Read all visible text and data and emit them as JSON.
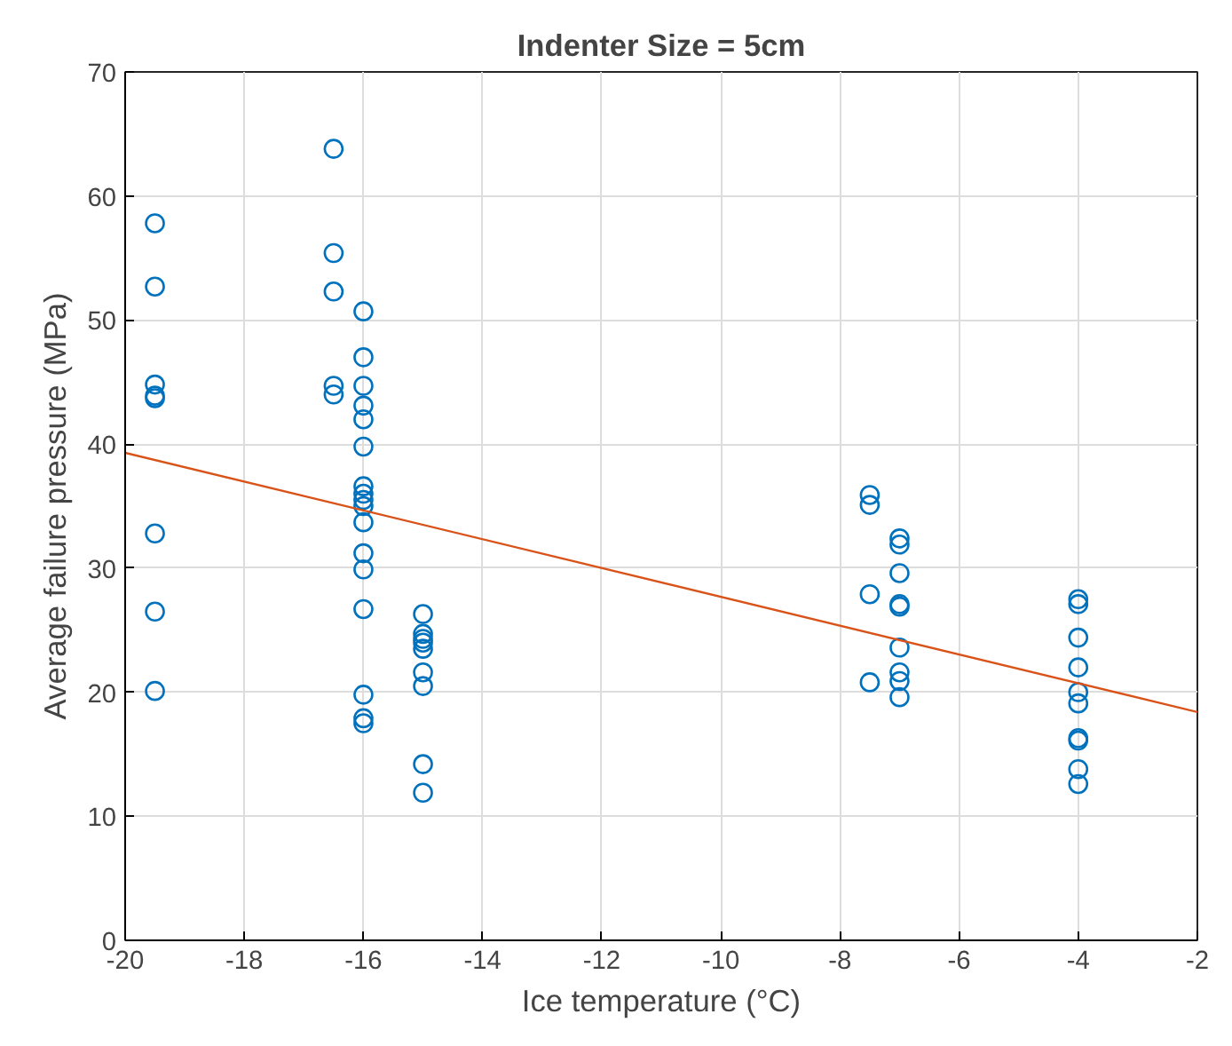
{
  "chart_data": {
    "type": "scatter",
    "title": "Indenter Size = 5cm",
    "xlabel": "Ice temperature (°C)",
    "ylabel": "Average failure pressure (MPa)",
    "xlim": [
      -20,
      -2
    ],
    "xticks": [
      -20,
      -18,
      -16,
      -14,
      -12,
      -10,
      -8,
      -6,
      -4,
      -2
    ],
    "ylim": [
      0,
      70
    ],
    "yticks": [
      0,
      10,
      20,
      30,
      40,
      50,
      60,
      70
    ],
    "grid": true,
    "series": [
      {
        "marker": "circle",
        "color": "#0072bd",
        "x": [
          -19.5,
          -19.5,
          -19.5,
          -19.5,
          -19.5,
          -19.5,
          -19.5,
          -19.5,
          -16.5,
          -16.5,
          -16.5,
          -16.5,
          -16.5,
          -16,
          -16,
          -16,
          -16,
          -16,
          -16,
          -16,
          -16,
          -16,
          -16,
          -16,
          -16,
          -16,
          -16,
          -16,
          -16,
          -16,
          -15,
          -15,
          -15,
          -15,
          -15,
          -15,
          -15,
          -15,
          -15,
          -7.5,
          -7.5,
          -7.5,
          -7.5,
          -7,
          -7,
          -7,
          -7,
          -7,
          -7,
          -7,
          -7,
          -7,
          -4,
          -4,
          -4,
          -4,
          -4,
          -4,
          -4,
          -4,
          -4,
          -4
        ],
        "values": [
          57.8,
          52.7,
          44.8,
          43.9,
          43.7,
          32.8,
          26.5,
          20.1,
          63.8,
          55.4,
          52.3,
          44.7,
          44.0,
          50.7,
          47.0,
          44.7,
          43.1,
          42.0,
          39.8,
          36.6,
          36.0,
          35.5,
          35.0,
          33.7,
          31.2,
          29.9,
          26.7,
          19.8,
          17.9,
          17.5,
          26.3,
          24.7,
          24.3,
          24.0,
          23.5,
          21.6,
          20.5,
          14.2,
          11.9,
          35.9,
          35.1,
          27.9,
          20.8,
          32.4,
          31.9,
          29.6,
          27.1,
          26.9,
          23.6,
          21.6,
          20.9,
          19.6,
          27.5,
          27.1,
          24.4,
          22.0,
          20.0,
          19.1,
          16.3,
          16.1,
          13.8,
          12.6
        ]
      },
      {
        "type": "line",
        "marker": "none",
        "color": "#d95319",
        "x": [
          -20,
          -2
        ],
        "values": [
          39.3,
          18.4
        ]
      }
    ]
  }
}
